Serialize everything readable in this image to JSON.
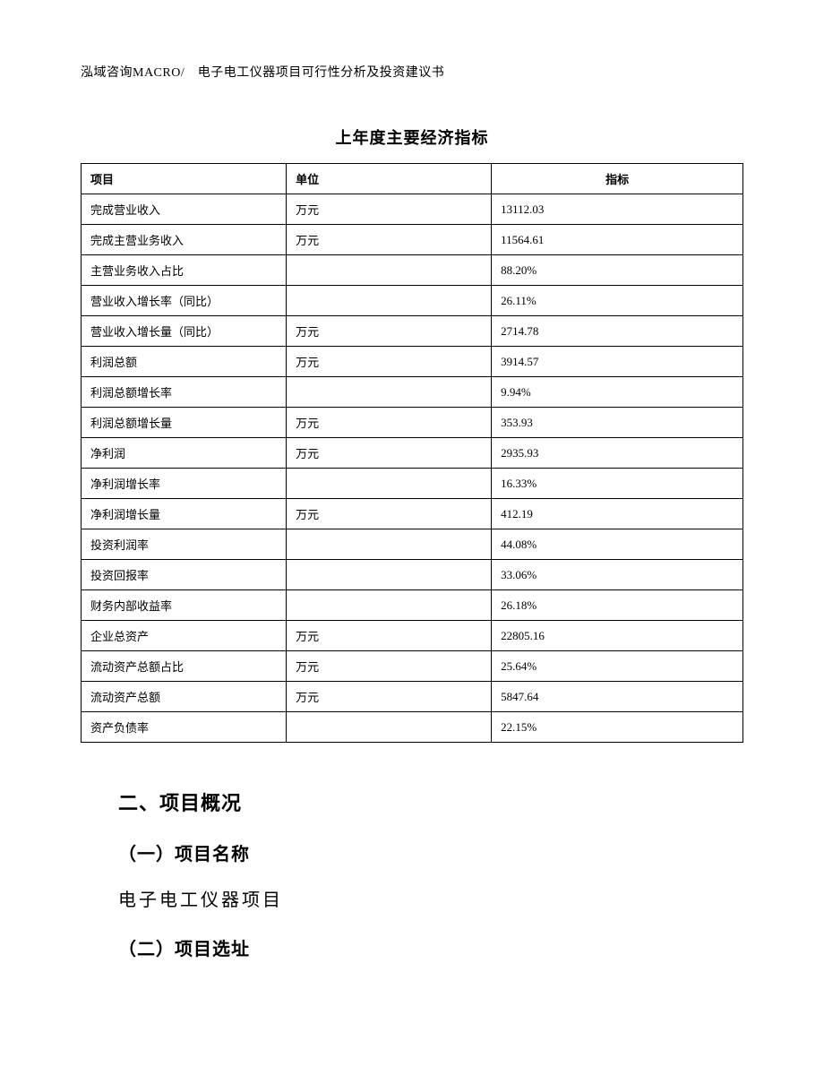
{
  "header": {
    "text": "泓域咨询MACRO/　电子电工仪器项目可行性分析及投资建议书"
  },
  "table": {
    "title": "上年度主要经济指标",
    "headers": [
      "项目",
      "单位",
      "指标"
    ],
    "rows": [
      [
        "完成营业收入",
        "万元",
        "13112.03"
      ],
      [
        "完成主营业务收入",
        "万元",
        "11564.61"
      ],
      [
        "主营业务收入占比",
        "",
        "88.20%"
      ],
      [
        "营业收入增长率（同比）",
        "",
        "26.11%"
      ],
      [
        "营业收入增长量（同比）",
        "万元",
        "2714.78"
      ],
      [
        "利润总额",
        "万元",
        "3914.57"
      ],
      [
        "利润总额增长率",
        "",
        "9.94%"
      ],
      [
        "利润总额增长量",
        "万元",
        "353.93"
      ],
      [
        "净利润",
        "万元",
        "2935.93"
      ],
      [
        "净利润增长率",
        "",
        "16.33%"
      ],
      [
        "净利润增长量",
        "万元",
        "412.19"
      ],
      [
        "投资利润率",
        "",
        "44.08%"
      ],
      [
        "投资回报率",
        "",
        "33.06%"
      ],
      [
        "财务内部收益率",
        "",
        "26.18%"
      ],
      [
        "企业总资产",
        "万元",
        "22805.16"
      ],
      [
        "流动资产总额占比",
        "万元",
        "25.64%"
      ],
      [
        "流动资产总额",
        "万元",
        "5847.64"
      ],
      [
        "资产负债率",
        "",
        "22.15%"
      ]
    ]
  },
  "sections": {
    "heading2": "二、项目概况",
    "sub1": "（一）项目名称",
    "body1": "电子电工仪器项目",
    "sub2": "（二）项目选址"
  }
}
